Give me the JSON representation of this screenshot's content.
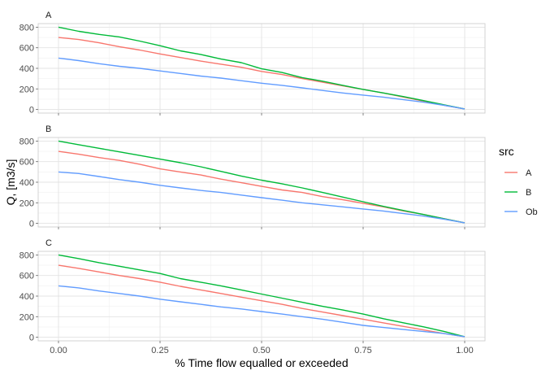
{
  "chart_data": {
    "type": "line",
    "xlabel": "% Time flow equalled or exceeded",
    "ylabel": "Q, [m3/s]",
    "xlim": [
      -0.05,
      1.05
    ],
    "ylim": [
      -35,
      835
    ],
    "x_ticks": [
      0.0,
      0.25,
      0.5,
      0.75,
      1.0
    ],
    "x_tick_labels": [
      "0.00",
      "0.25",
      "0.50",
      "0.75",
      "1.00"
    ],
    "y_ticks": [
      0,
      200,
      400,
      600,
      800
    ],
    "y_tick_labels": [
      "0",
      "200",
      "400",
      "600",
      "800"
    ],
    "grid": true,
    "legend": {
      "title": "src",
      "placement": "right",
      "entries": [
        {
          "name": "A",
          "color": "#F8766D"
        },
        {
          "name": "B",
          "color": "#00BA38"
        },
        {
          "name": "Ob",
          "color": "#619CFF"
        }
      ]
    },
    "panels": [
      {
        "label": "A",
        "series": [
          {
            "name": "A",
            "color": "#F8766D",
            "x": [
              0,
              0.05,
              0.1,
              0.15,
              0.2,
              0.25,
              0.3,
              0.35,
              0.4,
              0.45,
              0.5,
              0.55,
              0.6,
              0.65,
              0.7,
              0.75,
              0.8,
              0.85,
              0.9,
              0.95,
              1.0
            ],
            "y": [
              700,
              680,
              648,
              610,
              578,
              540,
              505,
              470,
              440,
              410,
              370,
              340,
              300,
              265,
              230,
              195,
              160,
              120,
              80,
              40,
              5
            ]
          },
          {
            "name": "B",
            "color": "#00BA38",
            "x": [
              0,
              0.05,
              0.1,
              0.15,
              0.2,
              0.25,
              0.3,
              0.35,
              0.4,
              0.45,
              0.5,
              0.55,
              0.6,
              0.65,
              0.7,
              0.75,
              0.8,
              0.85,
              0.9,
              0.95,
              1.0
            ],
            "y": [
              800,
              760,
              730,
              705,
              665,
              620,
              570,
              535,
              490,
              455,
              395,
              360,
              310,
              275,
              235,
              195,
              160,
              125,
              85,
              45,
              5
            ]
          },
          {
            "name": "Ob",
            "color": "#619CFF",
            "x": [
              0,
              0.05,
              0.1,
              0.15,
              0.2,
              0.25,
              0.3,
              0.35,
              0.4,
              0.45,
              0.5,
              0.55,
              0.6,
              0.65,
              0.7,
              0.75,
              0.8,
              0.85,
              0.9,
              0.95,
              1.0
            ],
            "y": [
              500,
              475,
              445,
              420,
              400,
              375,
              350,
              325,
              305,
              280,
              255,
              235,
              210,
              185,
              160,
              140,
              120,
              95,
              70,
              40,
              5
            ]
          }
        ]
      },
      {
        "label": "B",
        "series": [
          {
            "name": "A",
            "color": "#F8766D",
            "x": [
              0,
              0.05,
              0.1,
              0.15,
              0.2,
              0.25,
              0.3,
              0.35,
              0.4,
              0.45,
              0.5,
              0.55,
              0.6,
              0.65,
              0.7,
              0.75,
              0.8,
              0.85,
              0.9,
              0.95,
              1.0
            ],
            "y": [
              700,
              672,
              640,
              612,
              575,
              530,
              500,
              470,
              430,
              395,
              360,
              325,
              300,
              260,
              230,
              195,
              160,
              120,
              85,
              45,
              5
            ]
          },
          {
            "name": "B",
            "color": "#00BA38",
            "x": [
              0,
              0.05,
              0.1,
              0.15,
              0.2,
              0.25,
              0.3,
              0.35,
              0.4,
              0.45,
              0.5,
              0.55,
              0.6,
              0.65,
              0.7,
              0.75,
              0.8,
              0.85,
              0.9,
              0.95,
              1.0
            ],
            "y": [
              800,
              765,
              730,
              695,
              660,
              625,
              590,
              550,
              505,
              460,
              420,
              385,
              345,
              300,
              255,
              210,
              165,
              125,
              85,
              45,
              5
            ]
          },
          {
            "name": "Ob",
            "color": "#619CFF",
            "x": [
              0,
              0.05,
              0.1,
              0.15,
              0.2,
              0.25,
              0.3,
              0.35,
              0.4,
              0.45,
              0.5,
              0.55,
              0.6,
              0.65,
              0.7,
              0.75,
              0.8,
              0.85,
              0.9,
              0.95,
              1.0
            ],
            "y": [
              500,
              485,
              455,
              425,
              400,
              370,
              345,
              320,
              300,
              275,
              250,
              225,
              200,
              180,
              160,
              140,
              120,
              95,
              70,
              40,
              5
            ]
          }
        ]
      },
      {
        "label": "C",
        "series": [
          {
            "name": "A",
            "color": "#F8766D",
            "x": [
              0,
              0.05,
              0.1,
              0.15,
              0.2,
              0.25,
              0.3,
              0.35,
              0.4,
              0.45,
              0.5,
              0.55,
              0.6,
              0.65,
              0.7,
              0.75,
              0.8,
              0.85,
              0.9,
              0.95,
              1.0
            ],
            "y": [
              700,
              670,
              635,
              600,
              570,
              535,
              495,
              460,
              425,
              390,
              355,
              320,
              280,
              245,
              210,
              175,
              140,
              105,
              70,
              35,
              5
            ]
          },
          {
            "name": "B",
            "color": "#00BA38",
            "x": [
              0,
              0.05,
              0.1,
              0.15,
              0.2,
              0.25,
              0.3,
              0.35,
              0.4,
              0.45,
              0.5,
              0.55,
              0.6,
              0.65,
              0.7,
              0.75,
              0.8,
              0.85,
              0.9,
              0.95,
              1.0
            ],
            "y": [
              800,
              765,
              725,
              690,
              655,
              620,
              570,
              535,
              500,
              460,
              420,
              380,
              340,
              300,
              265,
              225,
              180,
              140,
              100,
              55,
              5
            ]
          },
          {
            "name": "Ob",
            "color": "#619CFF",
            "x": [
              0,
              0.05,
              0.1,
              0.15,
              0.2,
              0.25,
              0.3,
              0.35,
              0.4,
              0.45,
              0.5,
              0.55,
              0.6,
              0.65,
              0.7,
              0.75,
              0.8,
              0.85,
              0.9,
              0.95,
              1.0
            ],
            "y": [
              500,
              480,
              450,
              425,
              400,
              370,
              345,
              320,
              295,
              275,
              250,
              225,
              200,
              175,
              145,
              115,
              95,
              75,
              55,
              35,
              5
            ]
          }
        ]
      }
    ]
  }
}
